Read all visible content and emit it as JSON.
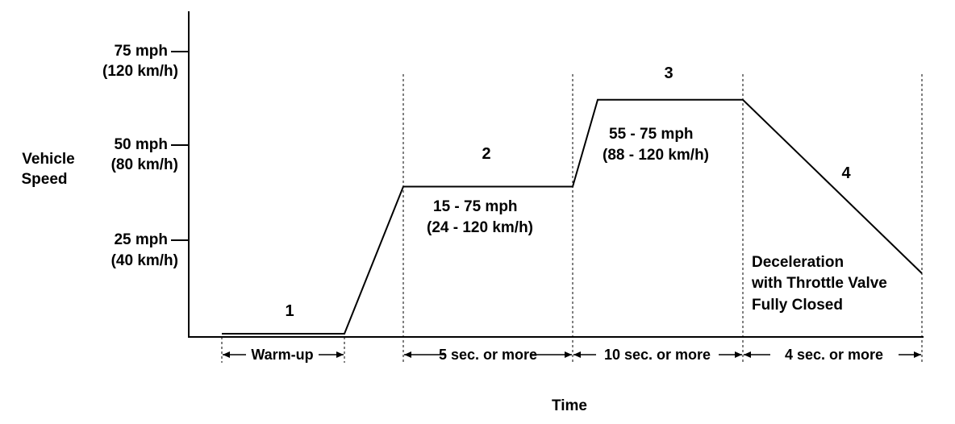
{
  "chart_data": {
    "type": "line",
    "title": "",
    "xlabel": "Time",
    "ylabel": [
      "Vehicle",
      "Speed"
    ],
    "y_ticks": [
      {
        "value": 75,
        "lines": [
          "75 mph",
          "(120 km/h)"
        ]
      },
      {
        "value": 50,
        "lines": [
          "50 mph",
          "(80 km/h)"
        ]
      },
      {
        "value": 25,
        "lines": [
          "25 mph",
          "(40 km/h)"
        ]
      }
    ],
    "ylim": [
      0,
      86
    ],
    "grid": false,
    "phases": [
      {
        "number": "1",
        "duration": "Warm-up",
        "speed_label": []
      },
      {
        "number": "2",
        "duration": "5 sec. or  more",
        "speed_label": [
          "15 - 75 mph",
          "(24 - 120 km/h)"
        ]
      },
      {
        "number": "3",
        "duration": "10 sec. or  more",
        "speed_label": [
          "55 - 75 mph",
          "(88 - 120 km/h)"
        ]
      },
      {
        "number": "4",
        "duration": "4 sec. or  more",
        "speed_label": [
          "Deceleration",
          "with Throttle Valve",
          "Fully Closed"
        ]
      }
    ],
    "profile_y": [
      1,
      1,
      40,
      40,
      63,
      63,
      17
    ]
  }
}
